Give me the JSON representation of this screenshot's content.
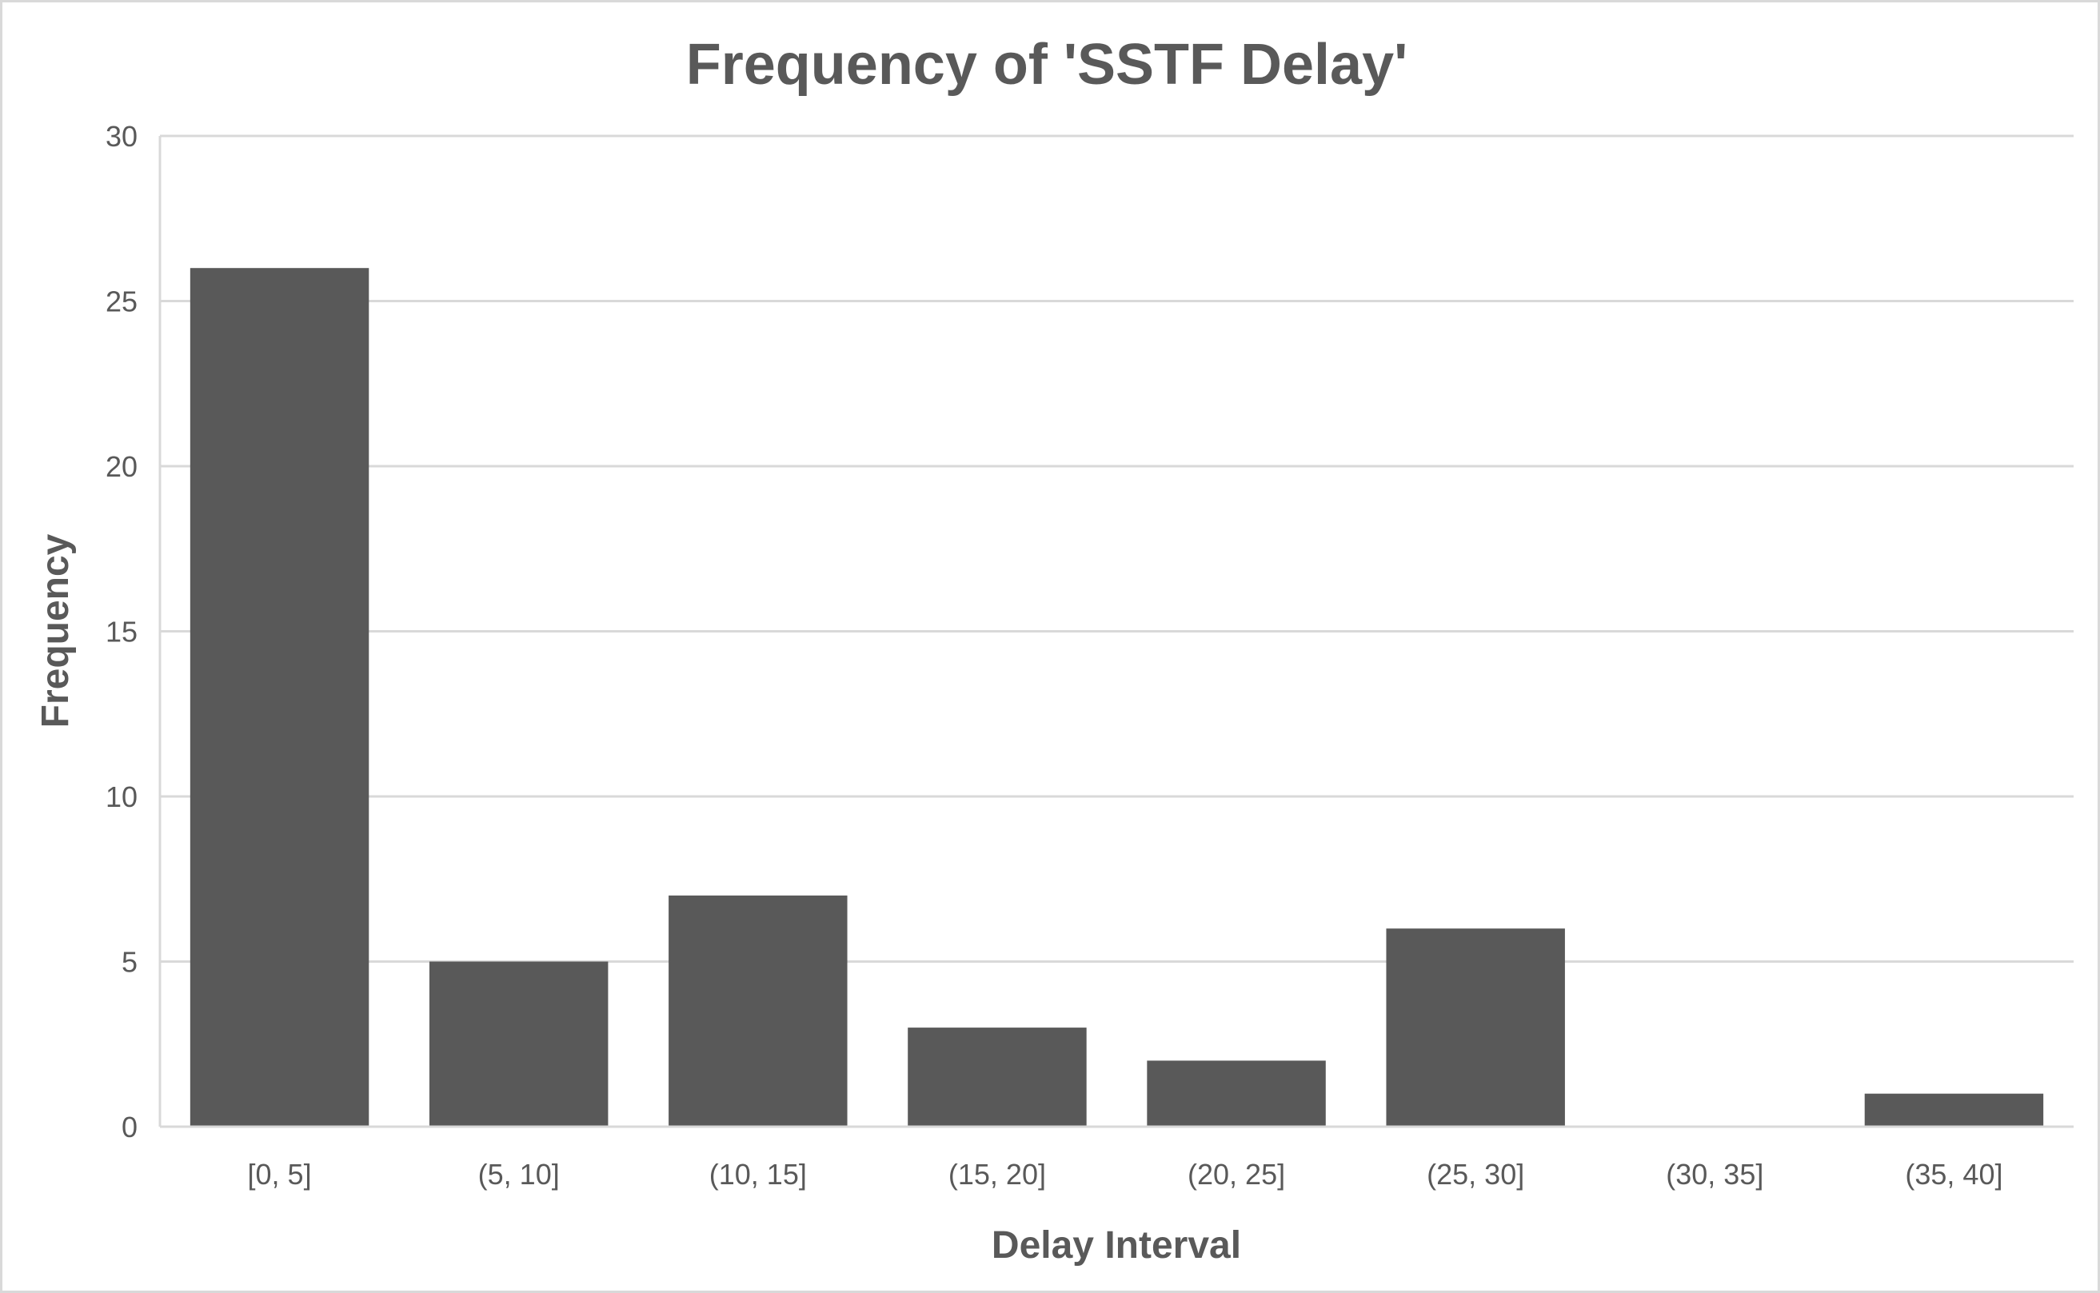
{
  "chart_data": {
    "type": "bar",
    "title": "Frequency of 'SSTF Delay'",
    "xlabel": "Delay Interval",
    "ylabel": "Frequency",
    "categories": [
      "[0, 5]",
      "(5, 10]",
      "(10, 15]",
      "(15, 20]",
      "(20, 25]",
      "(25, 30]",
      "(30, 35]",
      "(35, 40]"
    ],
    "values": [
      26,
      5,
      7,
      3,
      2,
      6,
      0,
      1
    ],
    "ylim": [
      0,
      30
    ],
    "yticks": [
      "0",
      "5",
      "10",
      "15",
      "20",
      "25",
      "30"
    ],
    "grid": true,
    "legend": "none",
    "bar_color": "#595959",
    "text_color": "#595959",
    "grid_color": "#d9d9d9"
  }
}
